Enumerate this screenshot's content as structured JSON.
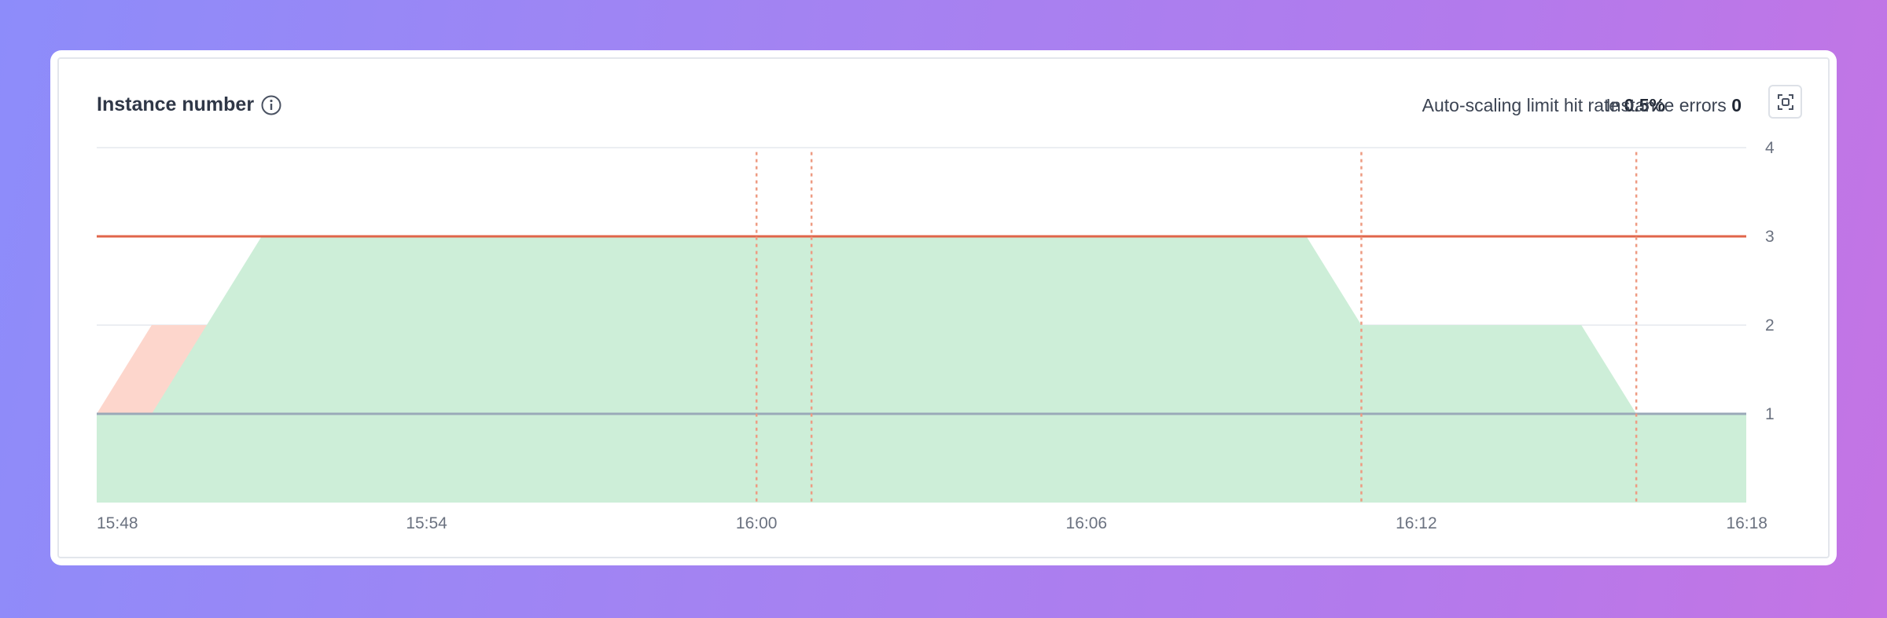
{
  "panel": {
    "title": "Instance number",
    "metrics": [
      {
        "label": "Auto-scaling limit hit rate",
        "value": "0.5%"
      },
      {
        "label": "Instance errors",
        "value": "0"
      }
    ]
  },
  "icons": {
    "info": "info-icon",
    "expand": "expand-icon"
  },
  "colors": {
    "area": "#cdeed8",
    "limit_area": "#fdd6cc",
    "max_line": "#e0654a",
    "min_line": "#9aa9b8",
    "event_line": "#ee9b82",
    "grid": "#eceef2"
  },
  "chart_data": {
    "type": "area",
    "x_ticks": [
      "15:48",
      "15:54",
      "16:00",
      "16:06",
      "16:12",
      "16:18"
    ],
    "y_ticks": [
      "1",
      "2",
      "3",
      "4"
    ],
    "ylim": [
      0,
      4
    ],
    "xlim": [
      "15:48",
      "16:18"
    ],
    "grid": true,
    "series": [
      {
        "x": [
          "15:48",
          "15:49",
          "15:51",
          "16:10",
          "16:11",
          "16:15",
          "16:16",
          "16:18"
        ],
        "y": [
          1,
          1,
          3,
          3,
          2,
          2,
          1,
          1
        ]
      }
    ],
    "limit_hit_series": [
      {
        "x": [
          "15:48",
          "15:49",
          "15:50",
          "15:59",
          "16:00",
          "16:01"
        ],
        "y": [
          1,
          2,
          2,
          3,
          1,
          3
        ]
      }
    ],
    "reference_lines": [
      {
        "y": 3
      },
      {
        "y": 1
      }
    ],
    "event_markers": [
      "16:00",
      "16:01",
      "16:11",
      "16:16"
    ]
  }
}
